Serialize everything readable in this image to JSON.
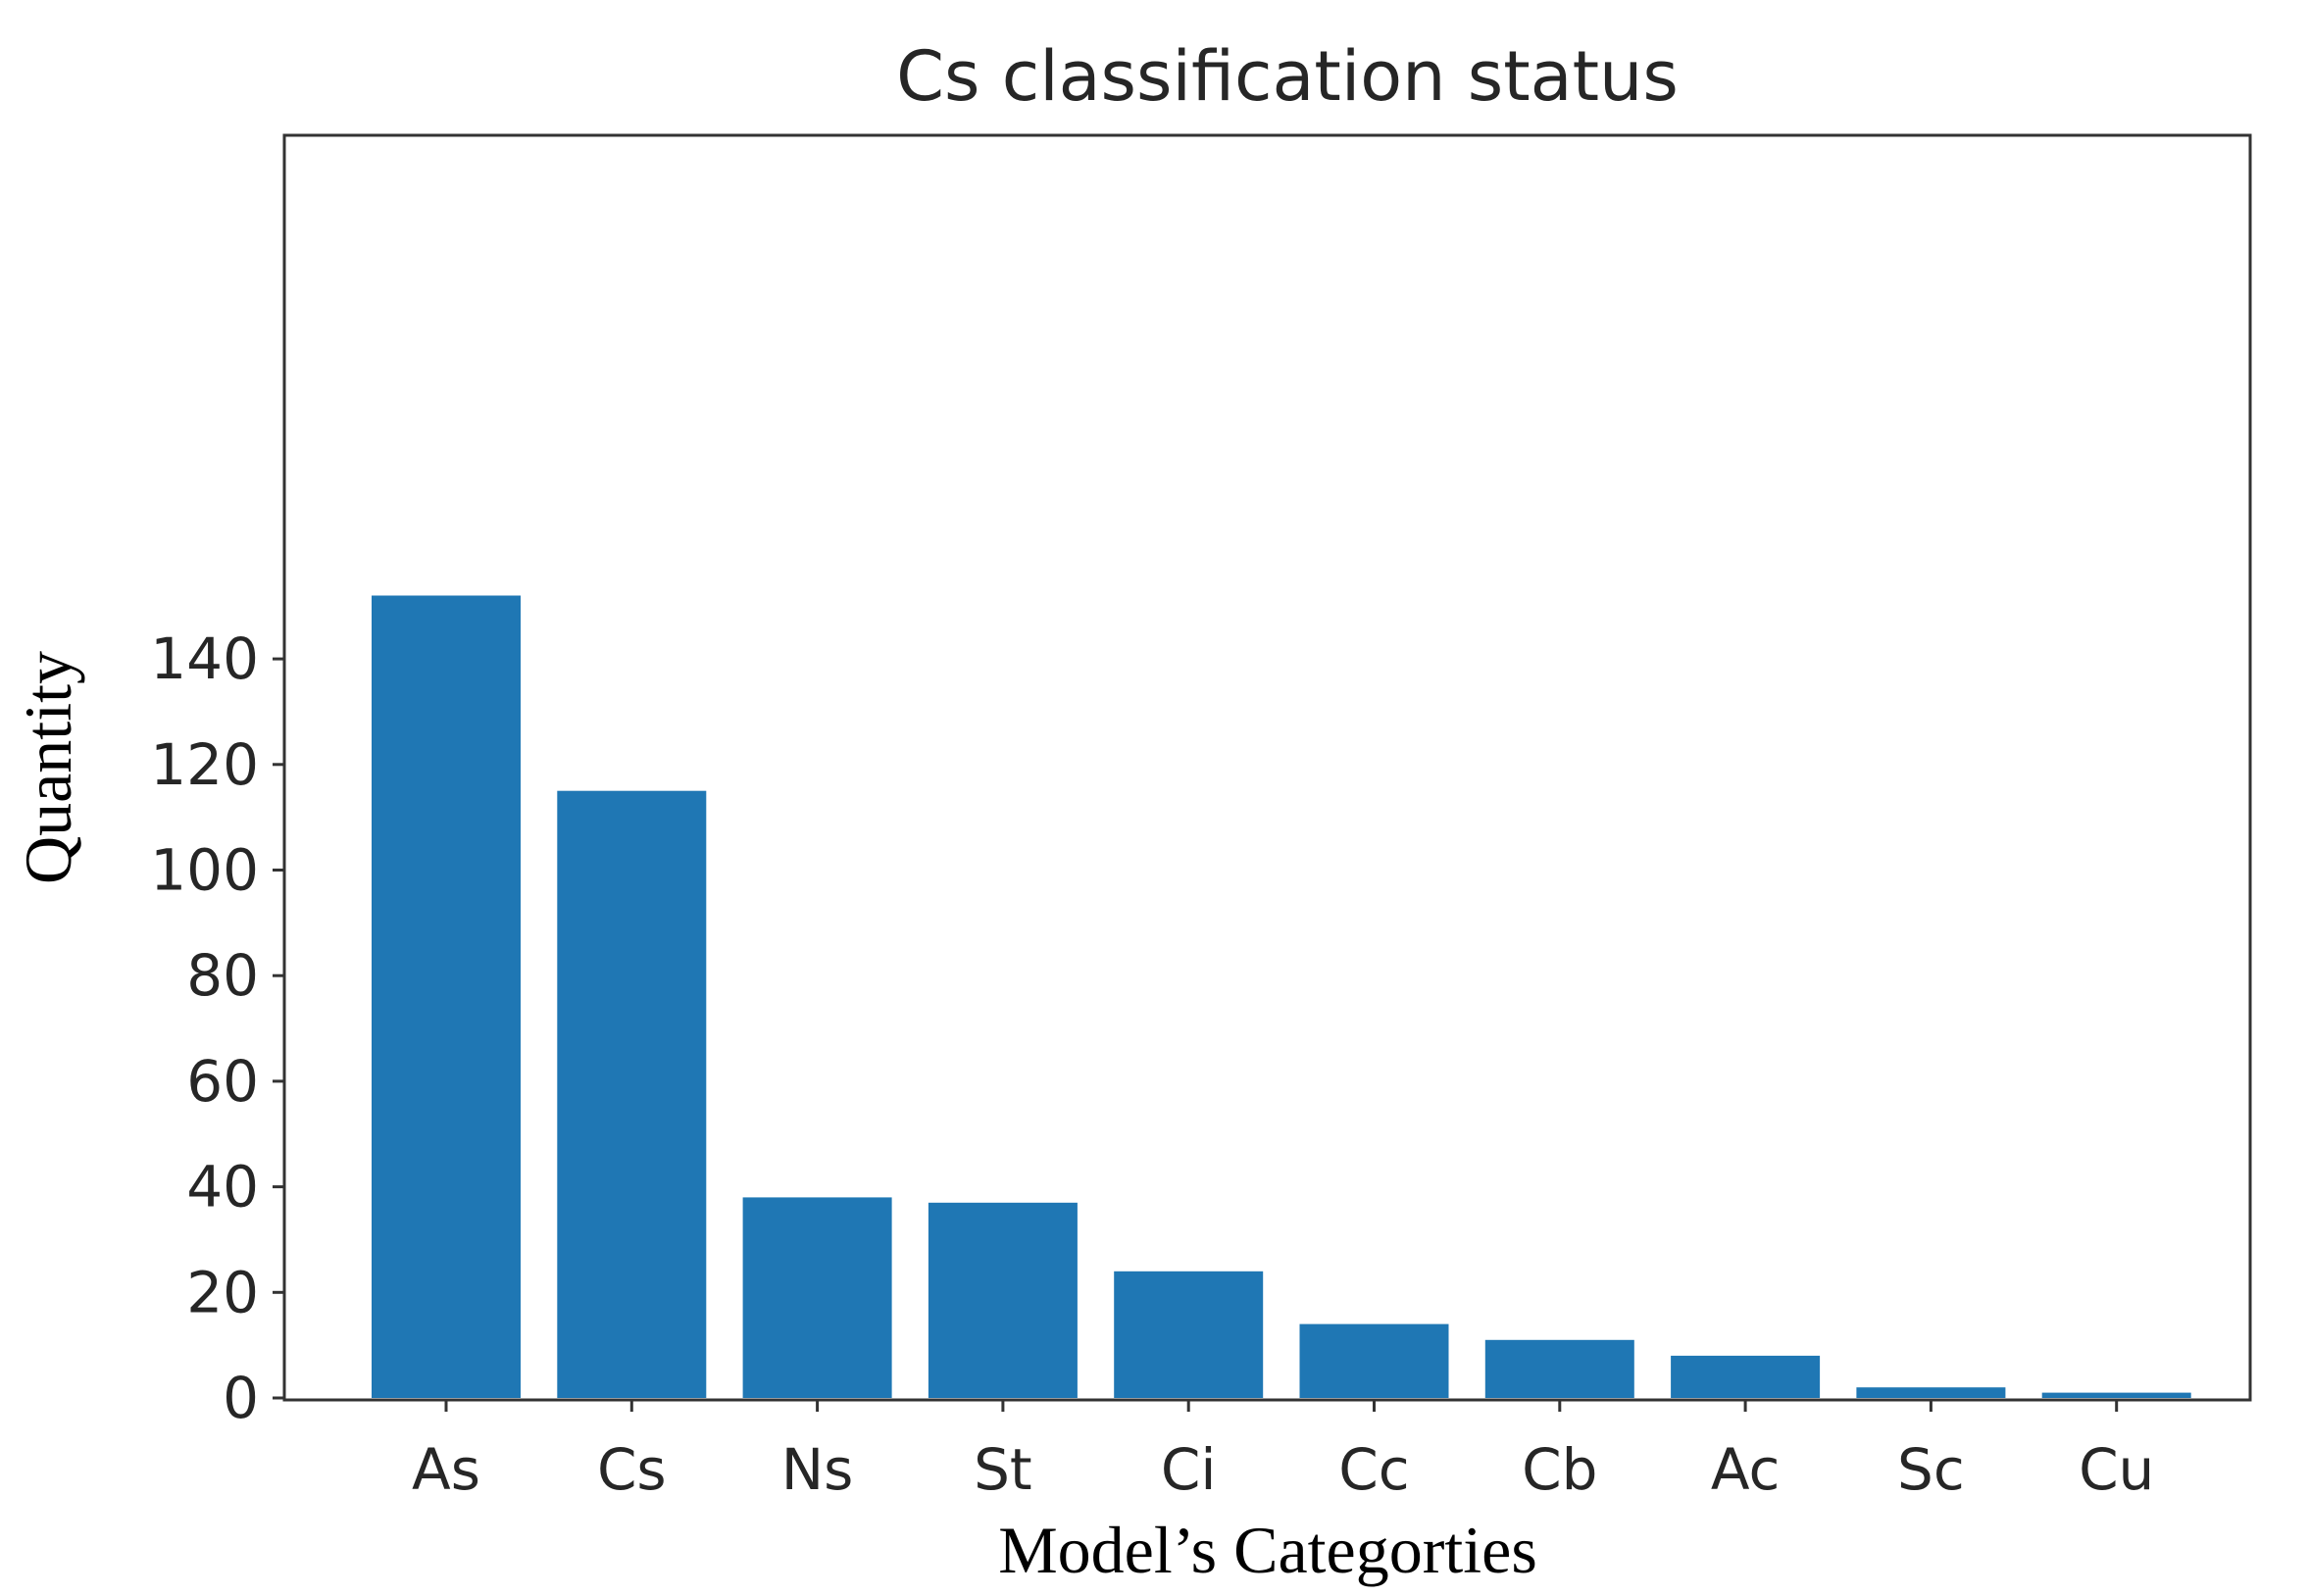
{
  "chart_data": {
    "type": "bar",
    "title": "Cs classification status",
    "xlabel": "Model’s Categorties",
    "ylabel": "Quantity",
    "categories": [
      "As",
      "Cs",
      "Ns",
      "St",
      "Ci",
      "Cc",
      "Cb",
      "Ac",
      "Sc",
      "Cu"
    ],
    "values": [
      152,
      115,
      38,
      37,
      24,
      14,
      11,
      8,
      2,
      1
    ],
    "ylim": [
      0,
      160
    ],
    "yticks": [
      0,
      20,
      40,
      60,
      80,
      100,
      120,
      140
    ],
    "ytick_labels": [
      "0",
      "20",
      "40",
      "60",
      "80",
      "100",
      "120",
      "140"
    ],
    "grid": false,
    "legend": "none",
    "bar_color": "#1f77b4"
  }
}
